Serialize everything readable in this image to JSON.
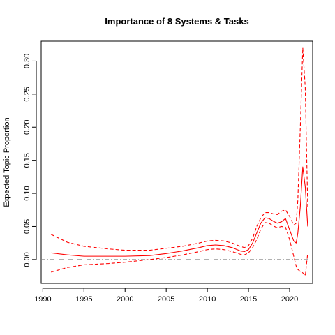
{
  "chart_data": {
    "type": "line",
    "title": "Importance of 8 Systems & Tasks",
    "xlabel": "",
    "ylabel": "Expected Topic Proportion",
    "xlim": [
      1989.8,
      2022.8
    ],
    "ylim": [
      -0.036,
      0.33
    ],
    "x_ticks": [
      1990,
      1995,
      2000,
      2005,
      2010,
      2015,
      2020
    ],
    "y_ticks": [
      0.0,
      0.05,
      0.1,
      0.15,
      0.2,
      0.25,
      0.3
    ],
    "y_tick_labels": [
      "0.00",
      "0.05",
      "0.10",
      "0.15",
      "0.20",
      "0.25",
      "0.30"
    ],
    "reference_line": {
      "y": 0.0,
      "style": "dash-dot",
      "color": "#808080"
    },
    "grid": false,
    "line_color": "#ff0000",
    "series": [
      {
        "role": "estimate",
        "style": "solid",
        "x": [
          1991,
          1993,
          1995,
          1998,
          2000,
          2003,
          2005,
          2007,
          2009,
          2010,
          2011,
          2012,
          2013,
          2014,
          2014.5,
          2015,
          2015.5,
          2016,
          2016.5,
          2017,
          2017.5,
          2018,
          2018.5,
          2019,
          2019.5,
          2020,
          2020.5,
          2020.8,
          2021,
          2021.3,
          2021.6,
          2021.9,
          2022.2
        ],
        "y": [
          0.01,
          0.007,
          0.005,
          0.005,
          0.005,
          0.006,
          0.009,
          0.013,
          0.018,
          0.021,
          0.022,
          0.021,
          0.018,
          0.013,
          0.012,
          0.015,
          0.025,
          0.04,
          0.055,
          0.063,
          0.062,
          0.058,
          0.055,
          0.057,
          0.062,
          0.045,
          0.028,
          0.025,
          0.04,
          0.08,
          0.14,
          0.11,
          0.05
        ]
      },
      {
        "role": "upper",
        "style": "dashed",
        "x": [
          1991,
          1993,
          1995,
          1998,
          2000,
          2003,
          2005,
          2007,
          2009,
          2010,
          2011,
          2012,
          2013,
          2014,
          2014.5,
          2015,
          2015.5,
          2016,
          2016.5,
          2017,
          2017.5,
          2018,
          2018.5,
          2019,
          2019.5,
          2020,
          2020.5,
          2020.8,
          2021,
          2021.3,
          2021.6,
          2021.9,
          2022.2
        ],
        "y": [
          0.038,
          0.026,
          0.02,
          0.016,
          0.014,
          0.014,
          0.017,
          0.02,
          0.025,
          0.028,
          0.029,
          0.028,
          0.025,
          0.02,
          0.018,
          0.021,
          0.032,
          0.05,
          0.063,
          0.071,
          0.071,
          0.069,
          0.068,
          0.073,
          0.075,
          0.065,
          0.052,
          0.055,
          0.09,
          0.2,
          0.32,
          0.26,
          0.08
        ]
      },
      {
        "role": "lower",
        "style": "dashed",
        "x": [
          1991,
          1993,
          1995,
          1998,
          2000,
          2003,
          2005,
          2007,
          2009,
          2010,
          2011,
          2012,
          2013,
          2014,
          2014.5,
          2015,
          2015.5,
          2016,
          2016.5,
          2017,
          2017.5,
          2018,
          2018.5,
          2019,
          2019.5,
          2020,
          2020.5,
          2020.8,
          2021,
          2021.3,
          2021.6,
          2021.9,
          2022.2
        ],
        "y": [
          -0.019,
          -0.012,
          -0.008,
          -0.006,
          -0.004,
          0.0,
          0.003,
          0.007,
          0.012,
          0.015,
          0.016,
          0.015,
          0.012,
          0.008,
          0.007,
          0.01,
          0.018,
          0.03,
          0.046,
          0.056,
          0.055,
          0.051,
          0.048,
          0.05,
          0.049,
          0.03,
          0.005,
          -0.01,
          -0.015,
          -0.018,
          -0.02,
          -0.025,
          0.01
        ]
      }
    ]
  }
}
